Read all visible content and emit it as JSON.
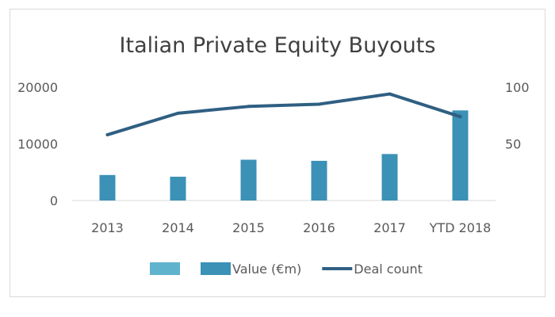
{
  "chart_data": {
    "type": "bar",
    "title": "Italian Private Equity Buyouts",
    "categories": [
      "2013",
      "2014",
      "2015",
      "2016",
      "2017",
      "YTD 2018"
    ],
    "series": [
      {
        "name": "Value (€m)",
        "kind": "bar",
        "axis": "left",
        "color": "#3b91b6",
        "values": [
          4500,
          4200,
          7200,
          7000,
          8200,
          15900
        ]
      },
      {
        "name": "Deal count",
        "kind": "line",
        "axis": "right",
        "color": "#2f5f82",
        "values": [
          58,
          77,
          83,
          85,
          94,
          74
        ]
      }
    ],
    "legend": [
      {
        "name": "",
        "kind": "bar",
        "color": "#5fb3cd"
      },
      {
        "name": "Value (€m)",
        "kind": "bar",
        "color": "#3b91b6"
      },
      {
        "name": "Deal count",
        "kind": "line",
        "color": "#2f5f82"
      }
    ],
    "y_left": {
      "ylim": [
        0,
        20000
      ],
      "ticks": [
        0,
        10000,
        20000
      ]
    },
    "y_right": {
      "ylim": [
        0,
        100
      ],
      "ticks": [
        50,
        100
      ]
    },
    "grid": false,
    "legend_position": "bottom"
  },
  "colors": {
    "text": "#595959",
    "title": "#404040"
  }
}
